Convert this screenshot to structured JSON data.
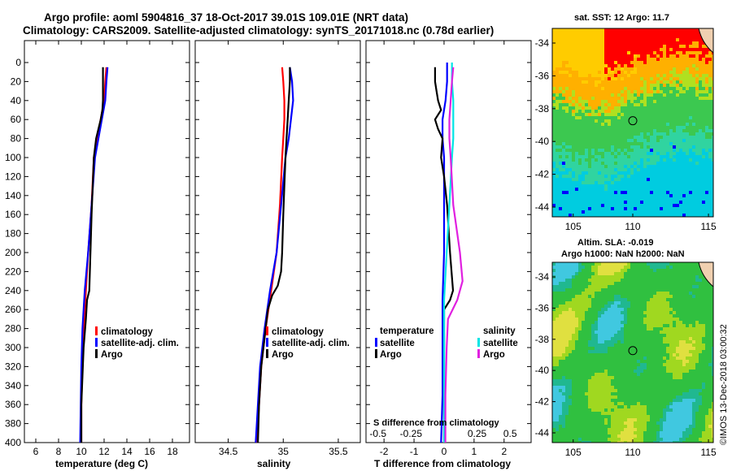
{
  "header": {
    "title_line1": "Argo profile: aoml 5904816_37 18-Oct-2017 39.01S 109.01E (NRT data)",
    "title_line2": "Climatology: CARS2009. Satellite-adjusted climatology: synTS_20171018.nc (0.78d earlier)"
  },
  "colors": {
    "climatology": "#ff0000",
    "satellite": "#0000ff",
    "argo": "#000000",
    "s_satellite": "#00e5e5",
    "s_argo": "#e020e0"
  },
  "depth_axis": {
    "ticks": [
      0,
      20,
      40,
      60,
      80,
      100,
      120,
      140,
      160,
      180,
      200,
      220,
      240,
      260,
      280,
      300,
      320,
      340,
      360,
      380,
      400
    ],
    "range": [
      0,
      400
    ]
  },
  "chart_data": [
    {
      "type": "line",
      "name": "temperature",
      "xlabel": "temperature (deg C)",
      "xlim": [
        5,
        19.5
      ],
      "xticks": [
        6,
        8,
        10,
        12,
        14,
        16,
        18
      ],
      "legend": [
        "climatology",
        "satellite-adj. clim.",
        "Argo"
      ],
      "series": [
        {
          "name": "climatology",
          "color": "#ff0000",
          "depth": [
            5,
            20,
            40,
            60,
            80,
            100,
            150,
            200,
            240,
            280,
            320,
            360,
            400
          ],
          "values": [
            12.2,
            12.1,
            12.0,
            11.7,
            11.4,
            11.1,
            10.9,
            10.6,
            10.4,
            10.2,
            10.1,
            10.0,
            10.0
          ]
        },
        {
          "name": "satellite-adj. clim.",
          "color": "#0000ff",
          "depth": [
            5,
            20,
            40,
            60,
            80,
            100,
            150,
            200,
            240,
            280,
            320,
            360,
            400
          ],
          "values": [
            12.3,
            12.2,
            12.1,
            11.8,
            11.5,
            11.2,
            10.9,
            10.6,
            10.3,
            10.1,
            10.0,
            9.95,
            9.9
          ]
        },
        {
          "name": "Argo",
          "color": "#000000",
          "depth": [
            5,
            20,
            40,
            50,
            60,
            80,
            100,
            130,
            160,
            200,
            240,
            250,
            270,
            300,
            330,
            360,
            400
          ],
          "values": [
            11.9,
            11.9,
            11.9,
            11.85,
            11.7,
            11.3,
            11.1,
            11.0,
            10.9,
            10.8,
            10.7,
            10.5,
            10.4,
            10.2,
            10.1,
            10.0,
            10.0
          ]
        }
      ]
    },
    {
      "type": "line",
      "name": "salinity",
      "xlabel": "salinity",
      "xlim": [
        34.2,
        35.7
      ],
      "xticks": [
        34.5,
        35,
        35.5
      ],
      "legend": [
        "climatology",
        "satellite-adj. clim.",
        "Argo"
      ],
      "series": [
        {
          "name": "climatology",
          "color": "#ff0000",
          "depth": [
            5,
            20,
            40,
            60,
            80,
            100,
            150,
            200,
            240,
            280,
            320,
            360,
            400
          ],
          "values": [
            34.99,
            35.0,
            35.01,
            35.01,
            35.0,
            34.99,
            34.97,
            34.94,
            34.89,
            34.84,
            34.8,
            34.78,
            34.76
          ]
        },
        {
          "name": "satellite-adj. clim.",
          "color": "#0000ff",
          "depth": [
            5,
            20,
            40,
            60,
            80,
            100,
            150,
            200,
            240,
            280,
            320,
            360,
            400
          ],
          "values": [
            35.06,
            35.08,
            35.09,
            35.07,
            35.05,
            35.02,
            34.98,
            34.94,
            34.88,
            34.83,
            34.79,
            34.77,
            34.75
          ]
        },
        {
          "name": "Argo",
          "color": "#000000",
          "depth": [
            5,
            20,
            40,
            60,
            80,
            100,
            130,
            160,
            200,
            220,
            235,
            245,
            260,
            280,
            320,
            360,
            400
          ],
          "values": [
            35.06,
            35.06,
            35.05,
            35.04,
            35.03,
            35.02,
            35.01,
            35.0,
            34.99,
            34.98,
            34.95,
            34.9,
            34.86,
            34.84,
            34.8,
            34.78,
            34.77
          ]
        }
      ]
    },
    {
      "type": "line",
      "name": "difference",
      "xlabel": "T difference from climatology",
      "xlabel_top": "S difference from climatology",
      "xlim": [
        -2.6,
        2.9
      ],
      "xticks": [
        -2,
        -1,
        0,
        1,
        2
      ],
      "s_ticks": [
        -0.5,
        -0.25,
        0,
        0.25,
        0.5
      ],
      "s_tick_labels": [
        "-0.5",
        "-0.25",
        "",
        "0.25",
        "0.5"
      ],
      "legend_titles": [
        "temperature",
        "salinity"
      ],
      "legend_temp": [
        "satellite",
        "Argo"
      ],
      "legend_sal": [
        "satellite",
        "Argo"
      ],
      "series": [
        {
          "name": "T satellite",
          "color": "#0000ff",
          "depth": [
            0,
            20,
            40,
            60,
            80,
            100,
            150,
            200,
            250,
            300,
            350,
            400
          ],
          "values": [
            0.1,
            0.1,
            0.05,
            -0.05,
            -0.05,
            0.0,
            0.0,
            0.0,
            -0.05,
            -0.05,
            -0.05,
            -0.1
          ]
        },
        {
          "name": "T Argo",
          "color": "#000000",
          "depth": [
            5,
            20,
            30,
            40,
            50,
            60,
            70,
            80,
            100,
            120,
            150,
            200,
            240,
            250,
            260,
            280,
            300,
            350,
            400
          ],
          "values": [
            -0.3,
            -0.3,
            -0.25,
            -0.2,
            -0.1,
            -0.3,
            -0.2,
            -0.05,
            -0.1,
            0.0,
            0.1,
            0.2,
            0.3,
            0.2,
            0.0,
            0.0,
            0.0,
            0.0,
            0.0
          ]
        },
        {
          "name": "S satellite",
          "color": "#00e5e5",
          "depth": [
            0,
            20,
            40,
            60,
            80,
            100,
            150,
            200,
            250,
            300,
            350,
            400
          ],
          "values": [
            0.06,
            0.06,
            0.07,
            0.07,
            0.07,
            0.06,
            0.04,
            0.02,
            0.0,
            0.0,
            0.0,
            0.0
          ]
        },
        {
          "name": "S Argo",
          "color": "#e020e0",
          "depth": [
            5,
            20,
            40,
            60,
            80,
            100,
            150,
            200,
            230,
            250,
            270,
            300,
            350,
            400
          ],
          "values": [
            0.07,
            0.06,
            0.05,
            0.04,
            0.04,
            0.05,
            0.07,
            0.12,
            0.14,
            0.1,
            0.03,
            0.02,
            0.01,
            0.01
          ]
        }
      ]
    }
  ],
  "maps": {
    "sst": {
      "title": "sat. SST: 12 Argo: 11.7",
      "xticks": [
        "105",
        "110",
        "115"
      ],
      "yticks": [
        "-34",
        "-36",
        "-38",
        "-40",
        "-42",
        "-44"
      ]
    },
    "sla": {
      "title1": "Altim. SLA: -0.019",
      "title2": "Argo h1000: NaN h2000: NaN",
      "xticks": [
        "105",
        "110",
        "115"
      ],
      "yticks": [
        "-34",
        "-36",
        "-38",
        "-40",
        "-42",
        "-44"
      ]
    }
  },
  "credit": "©IMOS 13-Dec-2018 03:00:32"
}
